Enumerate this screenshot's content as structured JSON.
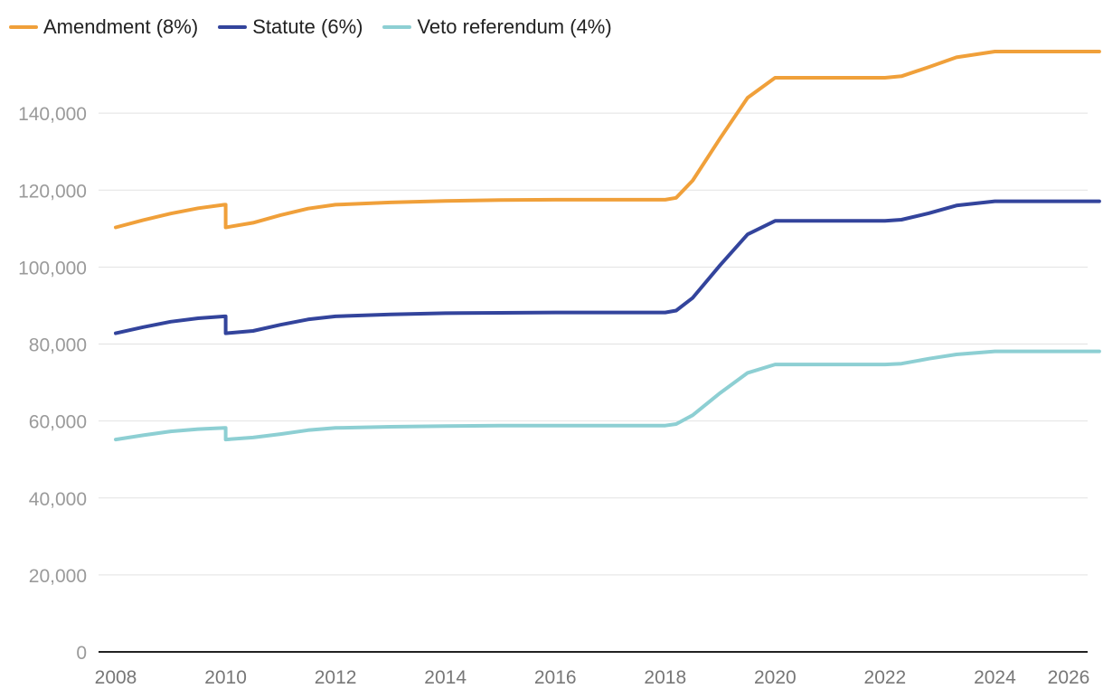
{
  "chart_data": {
    "type": "line",
    "title": "",
    "xlabel": "",
    "ylabel": "",
    "xlim": [
      2008,
      2026
    ],
    "ylim": [
      0,
      160000
    ],
    "x_ticks": [
      2008,
      2010,
      2012,
      2014,
      2016,
      2018,
      2020,
      2022,
      2024,
      2026
    ],
    "x_tick_labels": [
      "2008",
      "2010",
      "2012",
      "2014",
      "2016",
      "2018",
      "2020",
      "2022",
      "2024",
      "2026"
    ],
    "y_ticks": [
      0,
      20000,
      40000,
      60000,
      80000,
      100000,
      120000,
      140000
    ],
    "y_tick_labels": [
      "0",
      "20,000",
      "40,000",
      "60,000",
      "80,000",
      "100,000",
      "120,000",
      "140,000"
    ],
    "grid": "horizontal",
    "legend_position": "top-left",
    "series": [
      {
        "name": "Amendment (8%)",
        "color": "#f0a03a",
        "points": [
          [
            2008.0,
            110300
          ],
          [
            2008.5,
            112200
          ],
          [
            2009.0,
            113900
          ],
          [
            2009.5,
            115300
          ],
          [
            2009.98,
            116200
          ],
          [
            2010.0,
            116200
          ],
          [
            2010.0,
            110300
          ],
          [
            2010.5,
            111500
          ],
          [
            2011.0,
            113500
          ],
          [
            2011.5,
            115200
          ],
          [
            2012.0,
            116200
          ],
          [
            2013.0,
            116800
          ],
          [
            2014.0,
            117200
          ],
          [
            2015.0,
            117400
          ],
          [
            2016.0,
            117500
          ],
          [
            2017.0,
            117500
          ],
          [
            2018.0,
            117500
          ],
          [
            2018.2,
            118000
          ],
          [
            2018.5,
            122500
          ],
          [
            2019.0,
            133500
          ],
          [
            2019.5,
            144000
          ],
          [
            2020.0,
            149200
          ],
          [
            2021.0,
            149200
          ],
          [
            2022.0,
            149200
          ],
          [
            2022.3,
            149600
          ],
          [
            2022.8,
            152000
          ],
          [
            2023.3,
            154500
          ],
          [
            2024.0,
            156000
          ],
          [
            2025.0,
            156000
          ],
          [
            2025.9,
            156000
          ]
        ]
      },
      {
        "name": "Statute (6%)",
        "color": "#33449c",
        "points": [
          [
            2008.0,
            82800
          ],
          [
            2008.5,
            84400
          ],
          [
            2009.0,
            85800
          ],
          [
            2009.5,
            86700
          ],
          [
            2009.98,
            87200
          ],
          [
            2010.0,
            87200
          ],
          [
            2010.0,
            82800
          ],
          [
            2010.5,
            83400
          ],
          [
            2011.0,
            85000
          ],
          [
            2011.5,
            86400
          ],
          [
            2012.0,
            87200
          ],
          [
            2013.0,
            87700
          ],
          [
            2014.0,
            88000
          ],
          [
            2015.0,
            88100
          ],
          [
            2016.0,
            88200
          ],
          [
            2017.0,
            88200
          ],
          [
            2018.0,
            88200
          ],
          [
            2018.2,
            88700
          ],
          [
            2018.5,
            92000
          ],
          [
            2019.0,
            100500
          ],
          [
            2019.5,
            108500
          ],
          [
            2020.0,
            112000
          ],
          [
            2021.0,
            112000
          ],
          [
            2022.0,
            112000
          ],
          [
            2022.3,
            112300
          ],
          [
            2022.8,
            114000
          ],
          [
            2023.3,
            116000
          ],
          [
            2024.0,
            117100
          ],
          [
            2025.0,
            117100
          ],
          [
            2025.9,
            117100
          ]
        ]
      },
      {
        "name": "Veto referendum (4%)",
        "color": "#8dcfd3",
        "points": [
          [
            2008.0,
            55200
          ],
          [
            2008.5,
            56300
          ],
          [
            2009.0,
            57300
          ],
          [
            2009.5,
            57900
          ],
          [
            2009.98,
            58200
          ],
          [
            2010.0,
            58200
          ],
          [
            2010.0,
            55200
          ],
          [
            2010.5,
            55700
          ],
          [
            2011.0,
            56600
          ],
          [
            2011.5,
            57600
          ],
          [
            2012.0,
            58200
          ],
          [
            2013.0,
            58500
          ],
          [
            2014.0,
            58700
          ],
          [
            2015.0,
            58800
          ],
          [
            2016.0,
            58800
          ],
          [
            2017.0,
            58800
          ],
          [
            2018.0,
            58800
          ],
          [
            2018.2,
            59200
          ],
          [
            2018.5,
            61500
          ],
          [
            2019.0,
            67300
          ],
          [
            2019.5,
            72500
          ],
          [
            2020.0,
            74700
          ],
          [
            2021.0,
            74700
          ],
          [
            2022.0,
            74700
          ],
          [
            2022.3,
            74900
          ],
          [
            2022.8,
            76200
          ],
          [
            2023.3,
            77300
          ],
          [
            2024.0,
            78100
          ],
          [
            2025.0,
            78100
          ],
          [
            2025.9,
            78100
          ]
        ]
      }
    ]
  }
}
